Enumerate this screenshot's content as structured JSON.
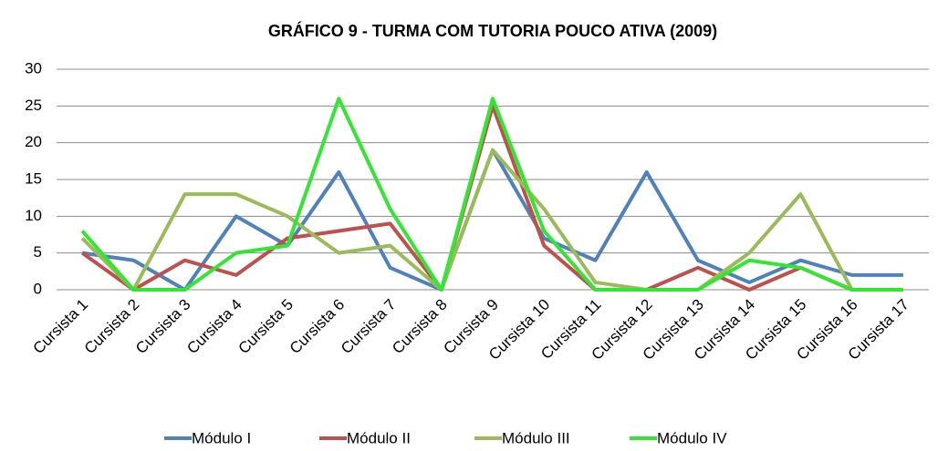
{
  "chart_data": {
    "type": "line",
    "title": "GRÁFICO 9 - TURMA COM TUTORIA POUCO ATIVA (2009)",
    "categories": [
      "Cursista 1",
      "Cursista 2",
      "Cursista 3",
      "Cursista 4",
      "Cursista 5",
      "Cursista 6",
      "Cursista 7",
      "Cursista 8",
      "Cursista 9",
      "Cursista 10",
      "Cursista 11",
      "Cursista 12",
      "Cursista 13",
      "Cursista 14",
      "Cursista 15",
      "Cursista 16",
      "Cursista 17"
    ],
    "series": [
      {
        "name": "Módulo I",
        "color": "#4f81bd",
        "values": [
          5,
          4,
          0,
          10,
          6,
          16,
          3,
          0,
          19,
          7,
          4,
          16,
          4,
          1,
          4,
          2,
          2
        ]
      },
      {
        "name": "Módulo II",
        "color": "#c0504d",
        "values": [
          5,
          0,
          4,
          2,
          7,
          8,
          9,
          0,
          25,
          6,
          0,
          0,
          3,
          0,
          3,
          0,
          0
        ]
      },
      {
        "name": "Módulo III",
        "color": "#9bbb59",
        "values": [
          7,
          0,
          13,
          13,
          10,
          5,
          6,
          0,
          19,
          11,
          1,
          0,
          0,
          5,
          13,
          0,
          0
        ]
      },
      {
        "name": "Módulo IV",
        "color": "#33e633",
        "values": [
          8,
          0,
          0,
          5,
          6,
          26,
          11,
          0,
          26,
          8,
          0,
          0,
          0,
          4,
          3,
          0,
          0
        ]
      }
    ],
    "ylim": [
      0,
      30
    ],
    "yticks": [
      0,
      5,
      10,
      15,
      20,
      25,
      30
    ],
    "grid": true,
    "legend": "bottom"
  }
}
